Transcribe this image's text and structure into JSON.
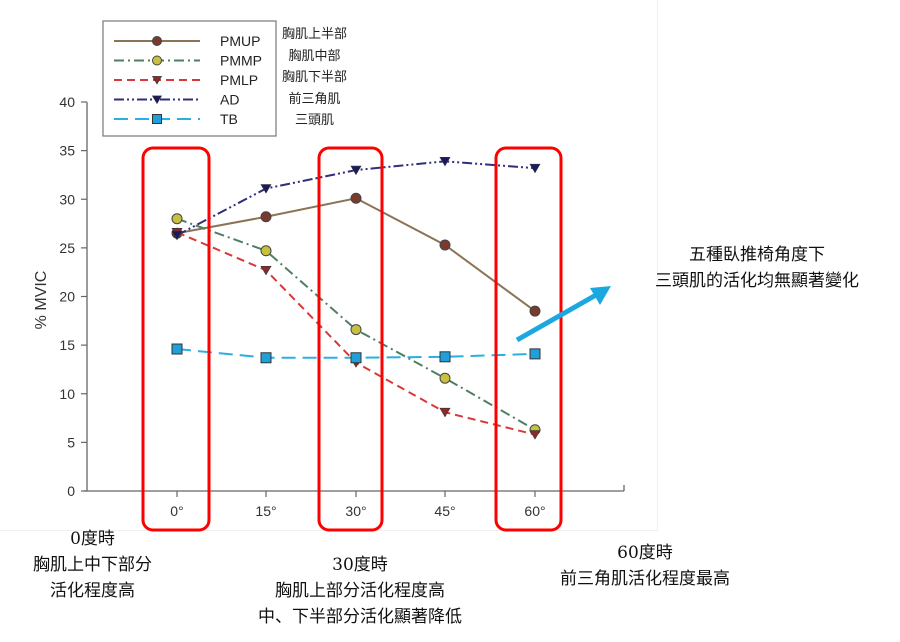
{
  "chart_data": {
    "type": "line",
    "title": "",
    "xlabel": "",
    "ylabel": "% MVIC",
    "ylim": [
      0,
      40
    ],
    "yticks": [
      0,
      5,
      10,
      15,
      20,
      25,
      30,
      35,
      40
    ],
    "categories": [
      "0°",
      "15°",
      "30°",
      "45°",
      "60°"
    ],
    "grid": false,
    "legend_position": "top-left",
    "series": [
      {
        "name": "PMUP",
        "name_zh": "胸肌上半部",
        "color": "#8B7355",
        "marker": "circle",
        "marker_color": "#7a3b2e",
        "dash": "solid",
        "values": [
          26.5,
          28.2,
          30.1,
          25.3,
          18.5
        ]
      },
      {
        "name": "PMMP",
        "name_zh": "胸肌中部",
        "color": "#4f7f62",
        "marker": "circle",
        "marker_color": "#c8c040",
        "dash": "dashdot",
        "values": [
          28.0,
          24.7,
          16.6,
          11.6,
          6.3
        ]
      },
      {
        "name": "PMLP",
        "name_zh": "胸肌下半部",
        "color": "#d9383a",
        "marker": "triangle-down",
        "marker_color": "#8b2a2a",
        "dash": "dashed",
        "values": [
          26.6,
          22.7,
          13.2,
          8.1,
          5.8
        ]
      },
      {
        "name": "AD",
        "name_zh": "前三角肌",
        "color": "#2f2f7a",
        "marker": "triangle-down",
        "marker_color": "#1a1a5e",
        "dash": "dashdotdot",
        "values": [
          26.3,
          31.1,
          33.0,
          33.9,
          33.2
        ]
      },
      {
        "name": "TB",
        "name_zh": "三頭肌",
        "color": "#2ab0e0",
        "marker": "square",
        "marker_color": "#1fa0da",
        "dash": "longdash",
        "values": [
          14.6,
          13.7,
          13.7,
          13.8,
          14.1
        ]
      }
    ],
    "highlights": [
      "0°",
      "30°",
      "60°"
    ]
  },
  "legend": {
    "items": [
      {
        "label": "PMUP",
        "label_zh": "胸肌上半部"
      },
      {
        "label": "PMMP",
        "label_zh": "胸肌中部"
      },
      {
        "label": "PMLP",
        "label_zh": "胸肌下半部"
      },
      {
        "label": "AD",
        "label_zh": "前三角肌"
      },
      {
        "label": "TB",
        "label_zh": "三頭肌"
      }
    ]
  },
  "axis": {
    "y_title": "% MVIC",
    "y_ticks": [
      "0",
      "5",
      "10",
      "15",
      "20",
      "25",
      "30",
      "35",
      "40"
    ],
    "x_ticks": [
      "0°",
      "15°",
      "30°",
      "45°",
      "60°"
    ]
  },
  "annotations": {
    "tb_note": {
      "line1": "五種臥推椅角度下",
      "line2": "三頭肌的活化均無顯著變化"
    },
    "deg0": {
      "line1": "0度時",
      "line2": "胸肌上中下部分",
      "line3": "活化程度高"
    },
    "deg30": {
      "line1": "30度時",
      "line2": "胸肌上部分活化程度高",
      "line3": "中、下半部分活化顯著降低"
    },
    "deg60": {
      "line1": "60度時",
      "line2": "前三角肌活化程度最高"
    }
  },
  "colors": {
    "highlight_box": "#ff0000",
    "arrow": "#1ba8e0",
    "axis": "#666666"
  }
}
